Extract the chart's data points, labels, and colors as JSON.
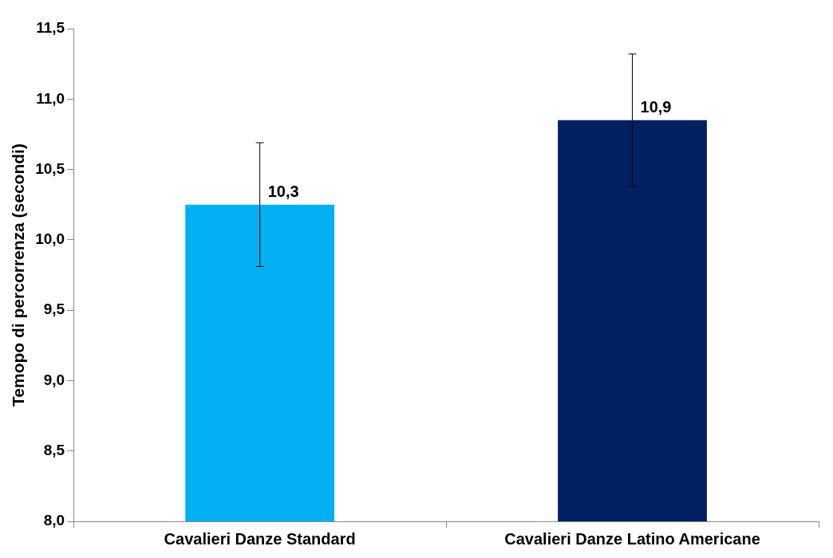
{
  "chart_data": {
    "type": "bar",
    "ylabel": "Temopo di percorrenza (secondi)",
    "categories": [
      "Cavalieri Danze Standard",
      "Cavalieri Danze Latino Americane"
    ],
    "values": [
      10.25,
      10.85
    ],
    "colors": [
      "#00b0f0",
      "#002060"
    ],
    "errors": [
      [
        9.81,
        10.69
      ],
      [
        10.38,
        11.32
      ]
    ],
    "value_labels": [
      "10,3",
      "10,9"
    ],
    "ylim": [
      8,
      11.5
    ],
    "yticks": [
      {
        "value": 8,
        "label": "8,0"
      },
      {
        "value": 8.5,
        "label": "8,5"
      },
      {
        "value": 9,
        "label": "9,0"
      },
      {
        "value": 9.5,
        "label": "9,5"
      },
      {
        "value": 10,
        "label": "10,0"
      },
      {
        "value": 10.5,
        "label": "10,5"
      },
      {
        "value": 11,
        "label": "11,0"
      },
      {
        "value": 11.5,
        "label": "11,5"
      }
    ],
    "grid": false,
    "legend": false
  }
}
